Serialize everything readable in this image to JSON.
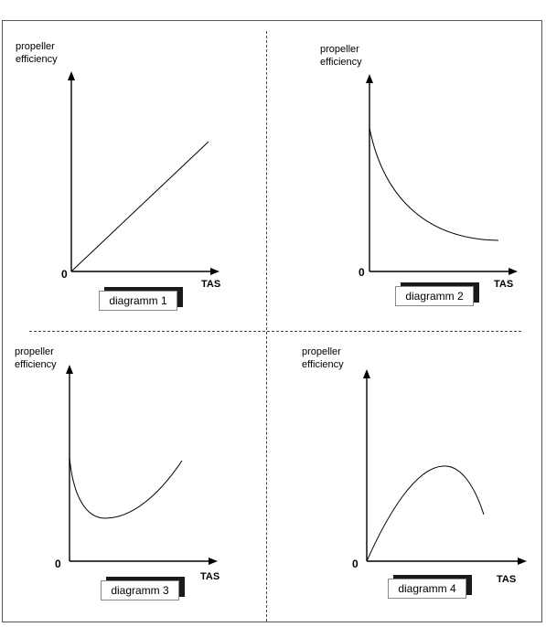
{
  "panels": [
    {
      "ylabel_line1": "propeller",
      "ylabel_line2": "efficiency",
      "origin": "0",
      "xlabel": "TAS",
      "caption": "diagramm 1",
      "curve": "linear-increase"
    },
    {
      "ylabel_line1": "propeller",
      "ylabel_line2": "efficiency",
      "origin": "0",
      "xlabel": "TAS",
      "caption": "diagramm 2",
      "curve": "decreasing-decay"
    },
    {
      "ylabel_line1": "propeller",
      "ylabel_line2": "efficiency",
      "origin": "0",
      "xlabel": "TAS",
      "caption": "diagramm 3",
      "curve": "u-shaped"
    },
    {
      "ylabel_line1": "propeller",
      "ylabel_line2": "efficiency",
      "origin": "0",
      "xlabel": "TAS",
      "caption": "diagramm 4",
      "curve": "rise-peak-fall"
    }
  ]
}
